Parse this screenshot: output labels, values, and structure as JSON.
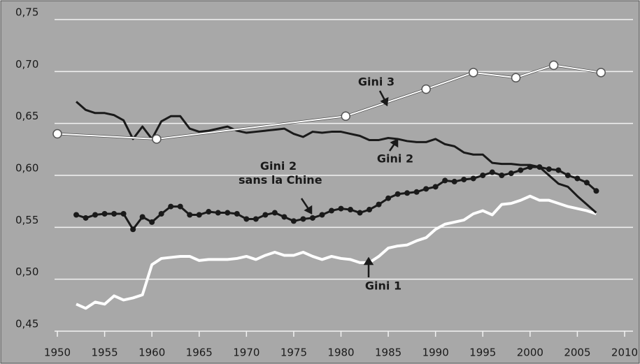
{
  "chart_data": {
    "type": "line",
    "xlim": [
      1950,
      2010
    ],
    "xticks": [
      1950,
      1955,
      1960,
      1965,
      1970,
      1975,
      1980,
      1985,
      1990,
      1995,
      2000,
      2005,
      2010
    ],
    "ylim": [
      0.45,
      0.75
    ],
    "yticks": [
      {
        "value": 0.45,
        "label": "0,45"
      },
      {
        "value": 0.5,
        "label": "0,50"
      },
      {
        "value": 0.55,
        "label": "0,55"
      },
      {
        "value": 0.6,
        "label": "0,60"
      },
      {
        "value": 0.65,
        "label": "0,65"
      },
      {
        "value": 0.7,
        "label": "0,70"
      },
      {
        "value": 0.75,
        "label": "0,75"
      }
    ],
    "grid": true,
    "series": [
      {
        "name": "Gini 1",
        "color": "#ffffff",
        "marker": "none",
        "x": [
          1952,
          1953,
          1954,
          1955,
          1956,
          1957,
          1958,
          1959,
          1960,
          1961,
          1962,
          1963,
          1964,
          1965,
          1966,
          1967,
          1968,
          1969,
          1970,
          1971,
          1972,
          1973,
          1974,
          1975,
          1976,
          1977,
          1978,
          1979,
          1980,
          1981,
          1982,
          1983,
          1984,
          1985,
          1986,
          1987,
          1988,
          1989,
          1990,
          1991,
          1992,
          1993,
          1994,
          1995,
          1996,
          1997,
          1998,
          1999,
          2000,
          2001,
          2002,
          2003,
          2004,
          2005,
          2006,
          2007
        ],
        "values": [
          0.476,
          0.472,
          0.478,
          0.476,
          0.484,
          0.48,
          0.482,
          0.485,
          0.514,
          0.52,
          0.521,
          0.522,
          0.522,
          0.518,
          0.519,
          0.519,
          0.519,
          0.52,
          0.522,
          0.519,
          0.523,
          0.526,
          0.523,
          0.523,
          0.526,
          0.522,
          0.519,
          0.522,
          0.52,
          0.519,
          0.516,
          0.516,
          0.522,
          0.53,
          0.532,
          0.533,
          0.537,
          0.54,
          0.548,
          0.553,
          0.555,
          0.557,
          0.563,
          0.566,
          0.562,
          0.572,
          0.573,
          0.576,
          0.58,
          0.576,
          0.576,
          0.573,
          0.57,
          0.568,
          0.566,
          0.563
        ]
      },
      {
        "name": "Gini 2",
        "color": "#1a1a1a",
        "marker": "none",
        "x": [
          1952,
          1953,
          1954,
          1955,
          1956,
          1957,
          1958,
          1959,
          1960,
          1961,
          1962,
          1963,
          1964,
          1965,
          1966,
          1967,
          1968,
          1969,
          1970,
          1971,
          1972,
          1973,
          1974,
          1975,
          1976,
          1977,
          1978,
          1979,
          1980,
          1981,
          1982,
          1983,
          1984,
          1985,
          1986,
          1987,
          1988,
          1989,
          1990,
          1991,
          1992,
          1993,
          1994,
          1995,
          1996,
          1997,
          1998,
          1999,
          2000,
          2001,
          2002,
          2003,
          2004,
          2005,
          2006,
          2007
        ],
        "values": [
          0.671,
          0.663,
          0.66,
          0.66,
          0.658,
          0.653,
          0.635,
          0.647,
          0.635,
          0.652,
          0.657,
          0.657,
          0.645,
          0.642,
          0.643,
          0.645,
          0.647,
          0.643,
          0.641,
          0.642,
          0.643,
          0.644,
          0.645,
          0.64,
          0.637,
          0.642,
          0.641,
          0.642,
          0.642,
          0.64,
          0.638,
          0.634,
          0.634,
          0.636,
          0.635,
          0.633,
          0.632,
          0.632,
          0.635,
          0.63,
          0.628,
          0.622,
          0.62,
          0.62,
          0.612,
          0.611,
          0.611,
          0.61,
          0.61,
          0.608,
          0.6,
          0.592,
          0.589,
          0.58,
          0.572,
          0.564
        ]
      },
      {
        "name": "Gini 2 sans la Chine",
        "color": "#1a1a1a",
        "marker": "dot",
        "x": [
          1952,
          1953,
          1954,
          1955,
          1956,
          1957,
          1958,
          1959,
          1960,
          1961,
          1962,
          1963,
          1964,
          1965,
          1966,
          1967,
          1968,
          1969,
          1970,
          1971,
          1972,
          1973,
          1974,
          1975,
          1976,
          1977,
          1978,
          1979,
          1980,
          1981,
          1982,
          1983,
          1984,
          1985,
          1986,
          1987,
          1988,
          1989,
          1990,
          1991,
          1992,
          1993,
          1994,
          1995,
          1996,
          1997,
          1998,
          1999,
          2000,
          2001,
          2002,
          2003,
          2004,
          2005,
          2006,
          2007
        ],
        "values": [
          0.562,
          0.559,
          0.562,
          0.563,
          0.563,
          0.563,
          0.548,
          0.56,
          0.555,
          0.563,
          0.57,
          0.57,
          0.562,
          0.562,
          0.565,
          0.564,
          0.564,
          0.563,
          0.558,
          0.558,
          0.562,
          0.564,
          0.56,
          0.556,
          0.558,
          0.559,
          0.562,
          0.566,
          0.568,
          0.567,
          0.564,
          0.567,
          0.572,
          0.578,
          0.582,
          0.583,
          0.584,
          0.587,
          0.589,
          0.595,
          0.594,
          0.596,
          0.597,
          0.6,
          0.603,
          0.6,
          0.602,
          0.605,
          0.608,
          0.608,
          0.606,
          0.605,
          0.6,
          0.597,
          0.593,
          0.585
        ]
      },
      {
        "name": "Gini 3",
        "color": "#ffffff",
        "marker": "circle",
        "x": [
          1950,
          1960.5,
          1980.5,
          1989,
          1994,
          1998.5,
          2002.5,
          2007.5
        ],
        "values": [
          0.64,
          0.635,
          0.657,
          0.683,
          0.699,
          0.694,
          0.706,
          0.699
        ]
      }
    ]
  }
}
